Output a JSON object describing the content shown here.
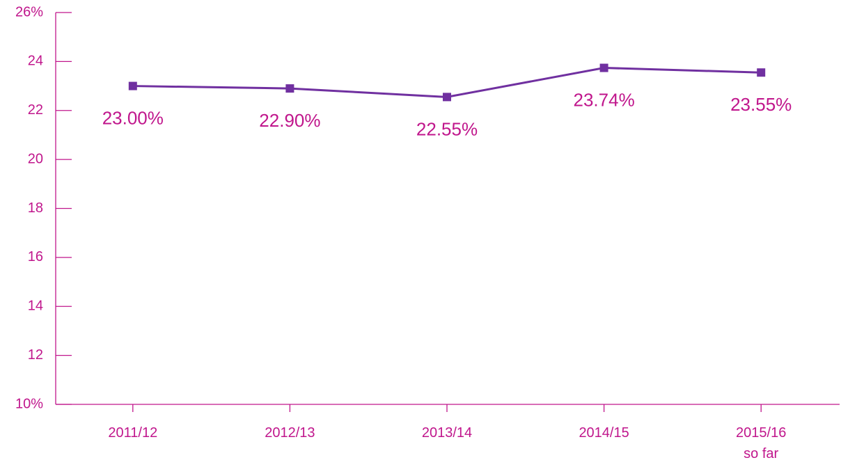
{
  "chart_data": {
    "type": "line",
    "categories": [
      "2011/12",
      "2012/13",
      "2013/14",
      "2014/15",
      "2015/16\nso far"
    ],
    "values": [
      23.0,
      22.9,
      22.55,
      23.74,
      23.55
    ],
    "value_labels": [
      "23.00%",
      "22.90%",
      "22.55%",
      "23.74%",
      "23.55%"
    ],
    "color": "#7030a0",
    "text_color": "#c0168c",
    "ylim": [
      10,
      26
    ],
    "yticks": [
      {
        "value": 10,
        "label": "10%"
      },
      12,
      14,
      16,
      18,
      20,
      22,
      24,
      {
        "value": 26,
        "label": "26%"
      }
    ],
    "grid": false
  }
}
